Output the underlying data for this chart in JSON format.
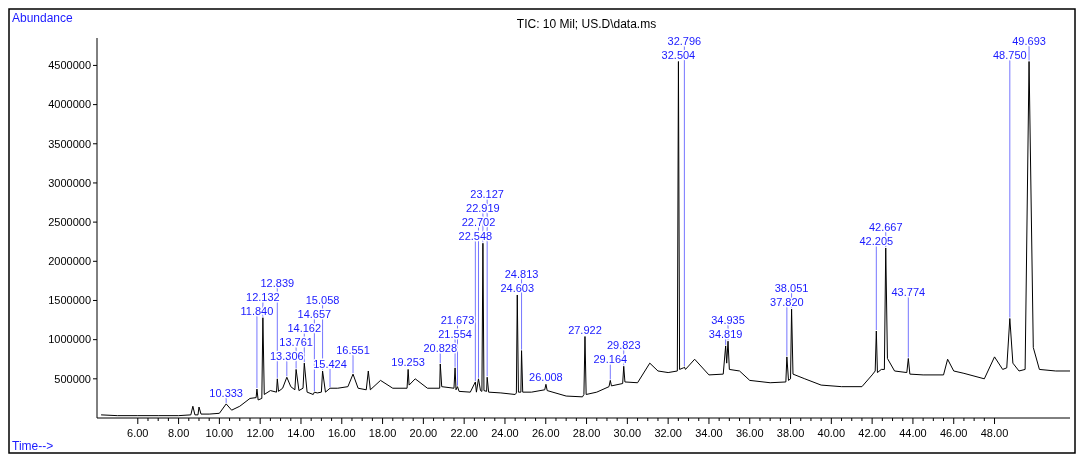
{
  "chart_data": {
    "type": "line",
    "title": "TIC: 10 Mil; US.D\\data.ms",
    "xlabel": "Time-->",
    "ylabel": "Abundance",
    "xlim": [
      4.0,
      51.7
    ],
    "ylim": [
      0,
      4850000
    ],
    "xticks": [
      {
        "value": 6,
        "label": "6.00"
      },
      {
        "value": 8,
        "label": "8.00"
      },
      {
        "value": 10,
        "label": "10.00"
      },
      {
        "value": 12,
        "label": "12.00"
      },
      {
        "value": 14,
        "label": "14.00"
      },
      {
        "value": 16,
        "label": "16.00"
      },
      {
        "value": 18,
        "label": "18.00"
      },
      {
        "value": 20,
        "label": "20.00"
      },
      {
        "value": 22,
        "label": "22.00"
      },
      {
        "value": 24,
        "label": "24.00"
      },
      {
        "value": 26,
        "label": "26.00"
      },
      {
        "value": 28,
        "label": "28.00"
      },
      {
        "value": 30,
        "label": "30.00"
      },
      {
        "value": 32,
        "label": "32.00"
      },
      {
        "value": 34,
        "label": "34.00"
      },
      {
        "value": 36,
        "label": "36.00"
      },
      {
        "value": 38,
        "label": "38.00"
      },
      {
        "value": 40,
        "label": "40.00"
      },
      {
        "value": 42,
        "label": "42.00"
      },
      {
        "value": 44,
        "label": "44.00"
      },
      {
        "value": 46,
        "label": "46.00"
      },
      {
        "value": 48,
        "label": "48.00"
      }
    ],
    "yticks": [
      500000,
      1000000,
      1500000,
      2000000,
      2500000,
      3000000,
      3500000,
      4000000,
      4500000
    ],
    "grid": false,
    "series": [
      {
        "color": "#000000",
        "x": [
          4.2,
          5,
          6,
          7,
          8,
          8.6,
          8.7,
          8.8,
          8.95,
          9.0,
          9.1,
          9.5,
          10,
          10.333,
          10.6,
          11,
          11.5,
          11.8,
          11.84,
          11.9,
          12.08,
          12.132,
          12.2,
          12.5,
          12.8,
          12.839,
          12.9,
          13.1,
          13.306,
          13.5,
          13.7,
          13.761,
          13.9,
          14.1,
          14.162,
          14.3,
          14.6,
          14.657,
          14.8,
          15.0,
          15.058,
          15.2,
          15.424,
          15.8,
          16.3,
          16.551,
          16.8,
          17.2,
          17.3,
          17.4,
          17.9,
          18.5,
          19.2,
          19.253,
          19.3,
          19.6,
          20.2,
          20.8,
          20.828,
          20.9,
          21.5,
          21.554,
          21.6,
          21.673,
          21.75,
          22.3,
          22.548,
          22.6,
          22.702,
          22.8,
          22.87,
          22.919,
          22.97,
          23.1,
          23.127,
          23.2,
          23.8,
          24.5,
          24.56,
          24.603,
          24.66,
          24.78,
          24.813,
          24.87,
          25.3,
          25.95,
          26.008,
          26.07,
          27.0,
          27.8,
          27.87,
          27.922,
          27.98,
          28.5,
          29.1,
          29.164,
          29.22,
          29.77,
          29.823,
          29.88,
          30.5,
          31.1,
          31.5,
          32.0,
          32.45,
          32.504,
          32.56,
          32.75,
          32.796,
          32.85,
          33.3,
          34.0,
          34.7,
          34.819,
          34.87,
          34.935,
          35.0,
          35.5,
          36.0,
          37.0,
          37.77,
          37.82,
          37.9,
          38.0,
          38.051,
          38.12,
          38.7,
          39.5,
          40.5,
          41.5,
          42.0,
          42.15,
          42.205,
          42.26,
          42.45,
          42.6,
          42.667,
          42.75,
          43.1,
          43.7,
          43.774,
          43.85,
          44.5,
          45.5,
          45.7,
          46.0,
          46.5,
          47.5,
          48.0,
          48.4,
          48.6,
          48.75,
          48.9,
          49.2,
          49.5,
          49.693,
          49.9,
          50.2,
          51.0,
          51.7
        ],
        "values": [
          40000,
          30000,
          30000,
          30000,
          30000,
          40000,
          150000,
          40000,
          40000,
          140000,
          50000,
          50000,
          60000,
          180000,
          100000,
          150000,
          250000,
          260000,
          370000,
          230000,
          250000,
          1280000,
          300000,
          350000,
          330000,
          500000,
          340000,
          380000,
          520000,
          400000,
          360000,
          620000,
          350000,
          380000,
          700000,
          330000,
          300000,
          330000,
          320000,
          330000,
          600000,
          330000,
          380000,
          380000,
          400000,
          560000,
          380000,
          360000,
          600000,
          360000,
          480000,
          380000,
          380000,
          620000,
          420000,
          500000,
          380000,
          380000,
          690000,
          400000,
          380000,
          640000,
          360000,
          400000,
          340000,
          330000,
          460000,
          330000,
          500000,
          350000,
          340000,
          2230000,
          350000,
          340000,
          520000,
          330000,
          320000,
          300000,
          320000,
          1570000,
          330000,
          330000,
          860000,
          330000,
          330000,
          360000,
          430000,
          350000,
          280000,
          270000,
          300000,
          1040000,
          300000,
          330000,
          400000,
          480000,
          410000,
          440000,
          660000,
          460000,
          450000,
          700000,
          600000,
          580000,
          600000,
          4550000,
          620000,
          640000,
          650000,
          620000,
          750000,
          550000,
          560000,
          920000,
          700000,
          980000,
          620000,
          600000,
          480000,
          450000,
          460000,
          780000,
          480000,
          500000,
          1390000,
          560000,
          500000,
          420000,
          400000,
          400000,
          550000,
          600000,
          1110000,
          580000,
          620000,
          620000,
          2170000,
          760000,
          600000,
          580000,
          760000,
          560000,
          550000,
          550000,
          750000,
          600000,
          570000,
          500000,
          780000,
          620000,
          640000,
          1270000,
          700000,
          600000,
          620000,
          4550000,
          900000,
          620000,
          600000,
          600000
        ]
      }
    ],
    "annotations": [
      {
        "text": "10.333",
        "x": 10.333,
        "y": 180000
      },
      {
        "text": "11.840",
        "x": 11.84,
        "y": 370000
      },
      {
        "text": "12.132",
        "x": 12.132,
        "y": 1280000
      },
      {
        "text": "12.839",
        "x": 12.839,
        "y": 500000
      },
      {
        "text": "13.306",
        "x": 13.306,
        "y": 520000
      },
      {
        "text": "13.761",
        "x": 13.761,
        "y": 620000
      },
      {
        "text": "14.162",
        "x": 14.162,
        "y": 700000
      },
      {
        "text": "14.657",
        "x": 14.657,
        "y": 330000
      },
      {
        "text": "15.058",
        "x": 15.058,
        "y": 600000
      },
      {
        "text": "15.424",
        "x": 15.424,
        "y": 380000
      },
      {
        "text": "16.551",
        "x": 16.551,
        "y": 560000
      },
      {
        "text": "19.253",
        "x": 19.253,
        "y": 620000
      },
      {
        "text": "20.828",
        "x": 20.828,
        "y": 690000
      },
      {
        "text": "21.554",
        "x": 21.554,
        "y": 640000
      },
      {
        "text": "21.673",
        "x": 21.673,
        "y": 400000
      },
      {
        "text": "22.548",
        "x": 22.548,
        "y": 460000
      },
      {
        "text": "22.702",
        "x": 22.702,
        "y": 500000
      },
      {
        "text": "22.919",
        "x": 22.919,
        "y": 2230000
      },
      {
        "text": "23.127",
        "x": 23.127,
        "y": 520000
      },
      {
        "text": "24.603",
        "x": 24.603,
        "y": 1570000
      },
      {
        "text": "24.813",
        "x": 24.813,
        "y": 860000
      },
      {
        "text": "26.008",
        "x": 26.008,
        "y": 430000
      },
      {
        "text": "27.922",
        "x": 27.922,
        "y": 1040000
      },
      {
        "text": "29.164",
        "x": 29.164,
        "y": 480000
      },
      {
        "text": "29.823",
        "x": 29.823,
        "y": 660000
      },
      {
        "text": "32.504",
        "x": 32.504,
        "y": 4550000
      },
      {
        "text": "32.796",
        "x": 32.796,
        "y": 650000
      },
      {
        "text": "34.819",
        "x": 34.819,
        "y": 920000
      },
      {
        "text": "34.935",
        "x": 34.935,
        "y": 980000
      },
      {
        "text": "37.820",
        "x": 37.82,
        "y": 780000
      },
      {
        "text": "38.051",
        "x": 38.051,
        "y": 1390000
      },
      {
        "text": "42.205",
        "x": 42.205,
        "y": 1110000
      },
      {
        "text": "42.667",
        "x": 42.667,
        "y": 2170000
      },
      {
        "text": "43.774",
        "x": 43.774,
        "y": 760000
      },
      {
        "text": "48.750",
        "x": 48.75,
        "y": 1270000
      },
      {
        "text": "49.693",
        "x": 49.693,
        "y": 4550000
      }
    ]
  }
}
